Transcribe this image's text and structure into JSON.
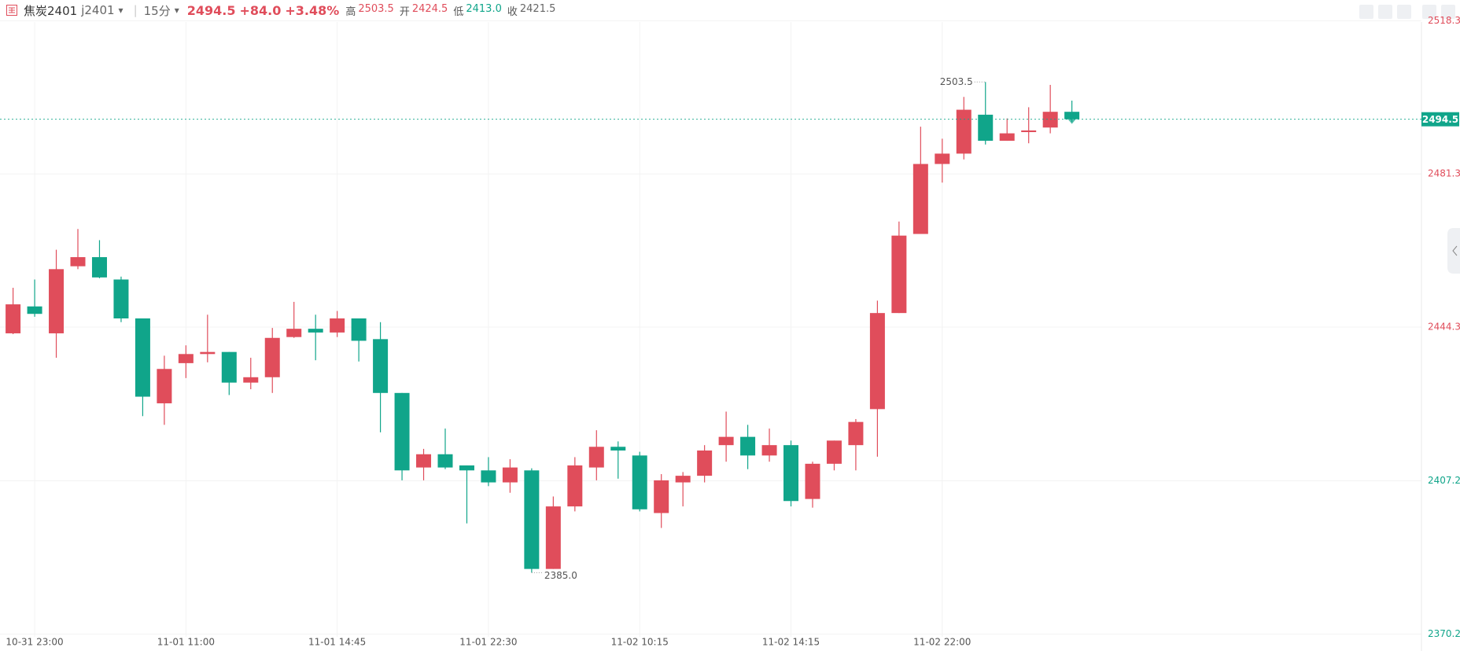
{
  "header": {
    "name": "焦炭2401",
    "code": "j2401",
    "period": "15分",
    "price": "2494.5",
    "change": "+84.0",
    "change_pct": "+3.48%",
    "stats": [
      {
        "label": "高",
        "value": "2503.5"
      },
      {
        "label": "开",
        "value": "2424.5"
      },
      {
        "label": "低",
        "value": "2413.0"
      },
      {
        "label": "收",
        "value": "2421.5"
      }
    ]
  },
  "chart_data": {
    "type": "candlestick",
    "categories": [
      null,
      "10-31 23:00",
      null,
      null,
      null,
      null,
      null,
      null,
      "11-01 11:00",
      null,
      null,
      null,
      null,
      null,
      null,
      "11-01 14:45",
      null,
      null,
      null,
      null,
      null,
      null,
      "11-01 22:30",
      null,
      null,
      null,
      null,
      null,
      null,
      "11-02 10:15",
      null,
      null,
      null,
      null,
      null,
      null,
      "11-02 14:15",
      null,
      null,
      null,
      null,
      null,
      null,
      "11-02 22:00",
      null,
      null,
      null,
      null,
      null,
      null
    ],
    "open": [
      2442.8,
      2449.3,
      2442.8,
      2459.0,
      2461.2,
      2455.8,
      2446.4,
      2425.9,
      2435.6,
      2437.8,
      2438.3,
      2430.9,
      2432.2,
      2441.9,
      2443.9,
      2443.0,
      2446.4,
      2441.4,
      2428.4,
      2410.4,
      2413.6,
      2410.9,
      2409.7,
      2406.8,
      2409.7,
      2385.9,
      2401.0,
      2410.4,
      2415.4,
      2413.3,
      2399.4,
      2406.8,
      2408.4,
      2415.8,
      2417.8,
      2413.3,
      2415.8,
      2402.8,
      2411.3,
      2415.8,
      2424.5,
      2447.7,
      2466.8,
      2483.7,
      2486.2,
      2495.6,
      2489.3,
      2491.4,
      2492.5,
      2496.3
    ],
    "high": [
      2453.8,
      2455.8,
      2463.0,
      2468.0,
      2465.3,
      2456.5,
      2446.4,
      2437.4,
      2439.9,
      2447.3,
      2438.3,
      2436.9,
      2444.1,
      2450.4,
      2447.3,
      2448.2,
      2446.4,
      2445.5,
      2428.4,
      2414.9,
      2419.8,
      2410.9,
      2412.9,
      2412.4,
      2410.2,
      2403.4,
      2412.9,
      2419.4,
      2416.7,
      2414.2,
      2408.8,
      2409.3,
      2415.8,
      2423.9,
      2420.7,
      2419.8,
      2416.9,
      2411.8,
      2416.9,
      2422.1,
      2450.7,
      2469.8,
      2492.7,
      2489.8,
      2499.9,
      2503.5,
      2494.7,
      2497.4,
      2502.8,
      2499.0
    ],
    "low": [
      2442.6,
      2446.8,
      2436.9,
      2458.3,
      2456.1,
      2445.5,
      2422.8,
      2420.7,
      2432.0,
      2435.8,
      2427.9,
      2429.3,
      2428.4,
      2441.7,
      2436.3,
      2441.9,
      2436.0,
      2418.9,
      2407.3,
      2407.3,
      2410.0,
      2396.9,
      2405.9,
      2404.3,
      2385.0,
      2385.9,
      2399.8,
      2407.3,
      2407.7,
      2399.8,
      2395.8,
      2401.0,
      2406.8,
      2411.8,
      2410.0,
      2411.8,
      2401.0,
      2400.7,
      2409.7,
      2409.7,
      2413.0,
      2447.7,
      2466.8,
      2479.2,
      2484.8,
      2488.4,
      2489.3,
      2488.7,
      2491.1,
      2493.8
    ],
    "close": [
      2449.8,
      2447.5,
      2458.3,
      2461.2,
      2456.3,
      2446.4,
      2427.5,
      2434.2,
      2437.8,
      2438.3,
      2430.9,
      2432.2,
      2441.7,
      2443.9,
      2443.0,
      2446.4,
      2441.0,
      2428.4,
      2409.7,
      2413.6,
      2410.4,
      2409.7,
      2406.8,
      2410.4,
      2385.9,
      2401.0,
      2410.9,
      2415.4,
      2414.5,
      2400.3,
      2407.3,
      2408.4,
      2414.5,
      2417.8,
      2413.3,
      2415.8,
      2402.3,
      2411.3,
      2416.9,
      2421.4,
      2447.7,
      2466.4,
      2483.7,
      2486.2,
      2496.8,
      2489.3,
      2491.1,
      2491.8,
      2496.3,
      2494.5
    ],
    "extreme_labels": {
      "high": "2503.5",
      "low": "2385.0"
    },
    "ylim": [
      2369.5,
      2518.8
    ],
    "yticks": [
      2370.2,
      2407.2,
      2444.3,
      2481.3,
      2518.3
    ],
    "up_color": "#e04d5b",
    "down_color": "#10a58a",
    "grid": true
  }
}
